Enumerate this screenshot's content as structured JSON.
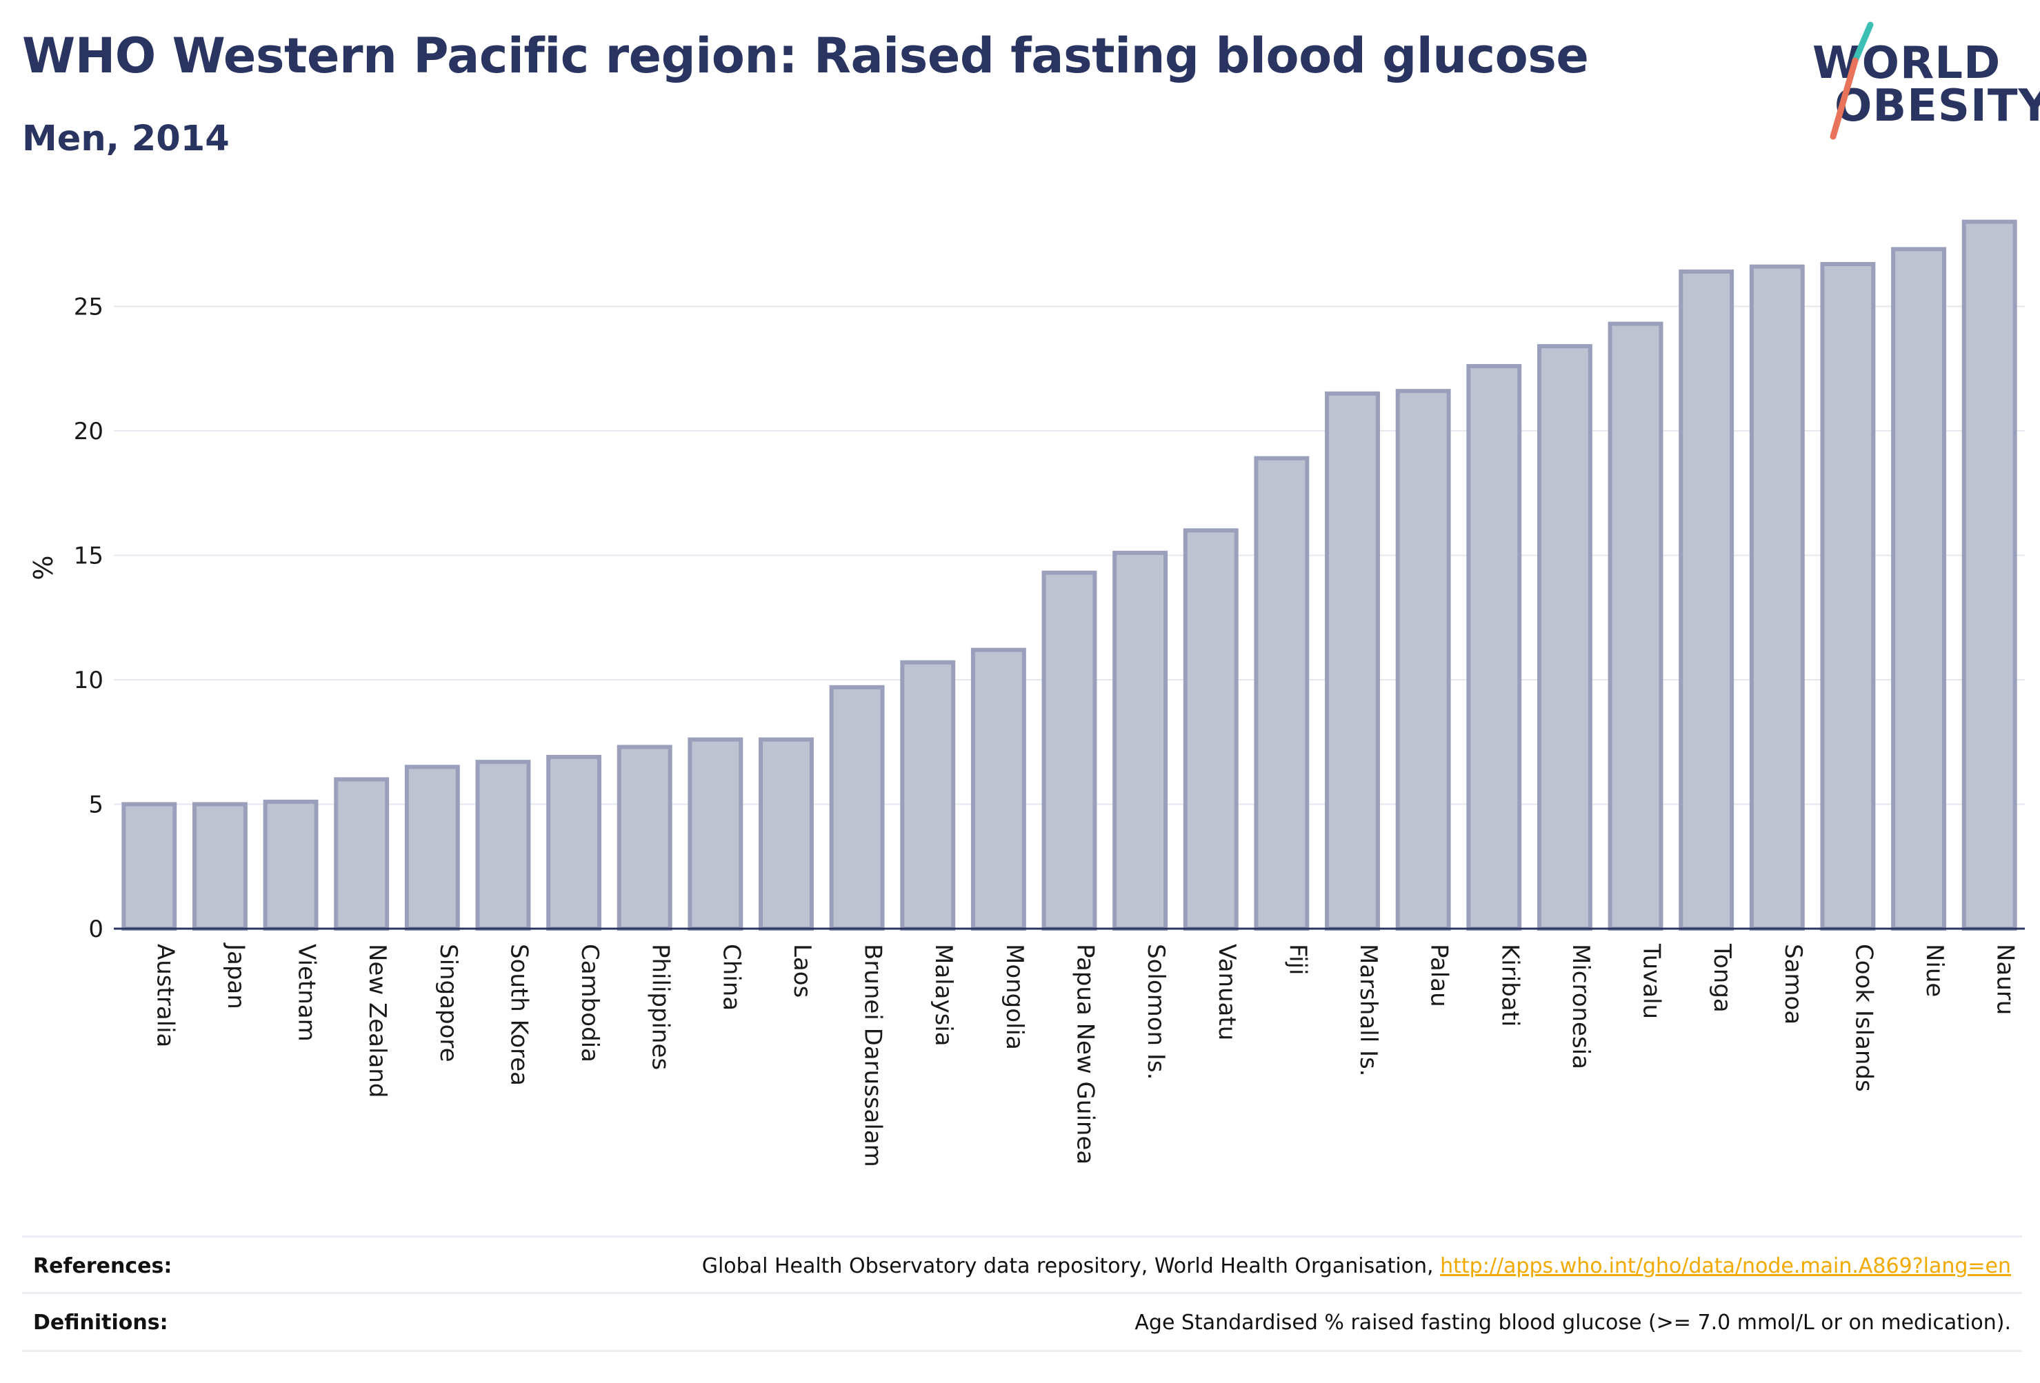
{
  "header": {
    "title": "WHO Western Pacific region: Raised fasting blood glucose",
    "subtitle": "Men, 2014"
  },
  "logo": {
    "line1": "WORLD",
    "line2": "OBESITY",
    "accent_colors": [
      "#3cbfb4",
      "#e8735a"
    ]
  },
  "chart_data": {
    "type": "bar",
    "ylabel": "%",
    "xlabel": "",
    "ylim": [
      0,
      29
    ],
    "yticks": [
      0,
      5,
      10,
      15,
      20,
      25
    ],
    "grid": true,
    "bar_fill": "#bfc2d1",
    "bar_stroke": "#9aa0bb",
    "categories": [
      "Australia",
      "Japan",
      "Vietnam",
      "New Zealand",
      "Singapore",
      "South Korea",
      "Cambodia",
      "Philippines",
      "China",
      "Laos",
      "Brunei Darussalam",
      "Malaysia",
      "Mongolia",
      "Papua New Guinea",
      "Solomon Is.",
      "Vanuatu",
      "Fiji",
      "Marshall Is.",
      "Palau",
      "Kiribati",
      "Micronesia",
      "Tuvalu",
      "Tonga",
      "Samoa",
      "Cook Islands",
      "Niue",
      "Nauru"
    ],
    "values": [
      5.0,
      5.0,
      5.1,
      6.0,
      6.5,
      6.7,
      6.9,
      7.3,
      7.6,
      7.6,
      9.7,
      10.7,
      11.2,
      14.3,
      15.1,
      16.0,
      18.9,
      21.5,
      21.6,
      22.6,
      23.4,
      24.3,
      26.4,
      26.6,
      26.7,
      27.3,
      28.4
    ]
  },
  "footer": {
    "references_label": "References:",
    "references_text": "Global Health Observatory data repository, World Health Organisation,",
    "references_link": "http://apps.who.int/gho/data/node.main.A869?lang=en",
    "definitions_label": "Definitions:",
    "definitions_text": "Age Standardised % raised fasting blood glucose (>= 7.0 mmol/L or on medication)."
  }
}
